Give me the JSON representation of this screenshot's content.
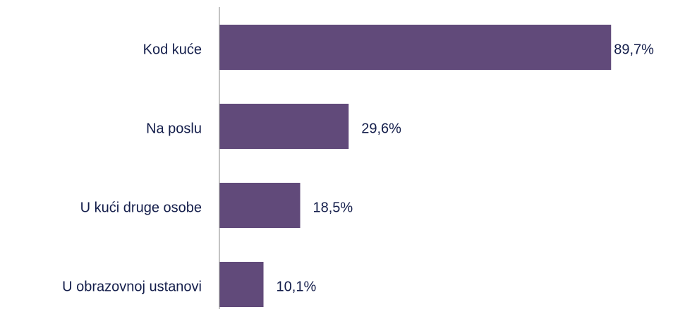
{
  "chart_data": {
    "type": "bar",
    "orientation": "horizontal",
    "categories": [
      "Kod kuće",
      "Na poslu",
      "U kući druge osobe",
      "U obrazovnoj ustanovi"
    ],
    "values": [
      89.7,
      29.6,
      18.5,
      10.1
    ],
    "value_labels": [
      "89,7%",
      "29,6%",
      "18,5%",
      "10,1%"
    ],
    "color": "#614a7a",
    "xlim": [
      0,
      100
    ]
  }
}
